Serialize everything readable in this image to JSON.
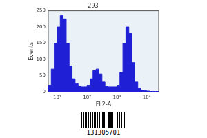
{
  "chart_data": {
    "type": "histogram",
    "title": "293",
    "x_label": "FL2-A",
    "y_label": "Events",
    "bins": [
      5.01,
      6.31,
      7.94,
      10,
      12.6,
      15.8,
      20.0,
      25.1,
      31.6,
      39.8,
      50.1,
      63.1,
      79.4,
      100,
      126,
      158,
      200,
      251,
      316,
      398,
      501,
      631,
      794,
      1000,
      1259,
      1585,
      1995,
      2512,
      3162,
      3981,
      5012,
      6310,
      7943,
      10000,
      12589,
      15849,
      19953,
      25119
    ],
    "counts": [
      5,
      20,
      70,
      150,
      200,
      235,
      225,
      150,
      80,
      40,
      25,
      18,
      15,
      15,
      20,
      40,
      65,
      70,
      55,
      30,
      18,
      15,
      15,
      15,
      20,
      60,
      150,
      200,
      180,
      90,
      30,
      10,
      5,
      3,
      2,
      1,
      1
    ],
    "color": "#1f1fd6",
    "log": "x",
    "xlim": [
      5.01,
      25119
    ],
    "xticks": [
      {
        "value": 10,
        "label": "10¹"
      },
      {
        "value": 100,
        "label": "10²"
      },
      {
        "value": 1000,
        "label": "10³"
      },
      {
        "value": 10000,
        "label": "10⁴"
      }
    ],
    "ylim": [
      0,
      250
    ],
    "yticks": [
      0,
      50,
      100,
      150,
      200,
      250
    ],
    "grid": false,
    "annotations": [
      "131305701"
    ]
  }
}
